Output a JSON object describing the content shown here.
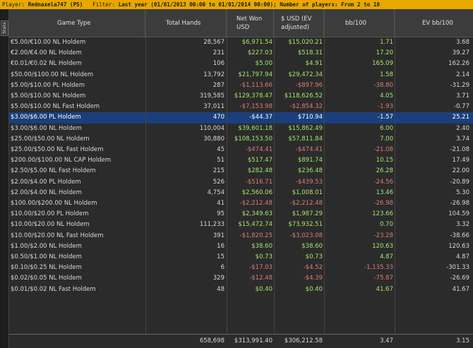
{
  "titlebar": {
    "player_label": "Player:",
    "player_value": "Rednaxela747 (PS)",
    "filter_label": "Filter:",
    "filter_value": "Last year (01/01/2013 00:00 to 01/01/2014 00:00); Number of players: From 2 to 10"
  },
  "sidetab": {
    "label": "Stats"
  },
  "columns": [
    "Game Type",
    "Total Hands",
    "Net Won USD",
    "$ USD (EV adjusted)",
    "bb/100",
    "EV bb/100"
  ],
  "rows": [
    {
      "game": "€5.00/€10.00 NL Holdem",
      "hands": "28,567",
      "net": "$6,971.54",
      "ev": "$15,020.21",
      "bb": "1.71",
      "evbb": "3.68"
    },
    {
      "game": "€2.00/€4.00 NL Holdem",
      "hands": "231",
      "net": "$227.03",
      "ev": "$518.31",
      "bb": "17.20",
      "evbb": "39.27"
    },
    {
      "game": "€0.01/€0.02 NL Holdem",
      "hands": "106",
      "net": "$5.00",
      "ev": "$4.91",
      "bb": "165.09",
      "evbb": "162.26"
    },
    {
      "game": "$50.00/$100.00 NL Holdem",
      "hands": "13,792",
      "net": "$21,797.94",
      "ev": "$29,472.34",
      "bb": "1.58",
      "evbb": "2.14"
    },
    {
      "game": "$5.00/$10.00 PL Holdem",
      "hands": "287",
      "net": "-$1,113.66",
      "ev": "-$897.96",
      "bb": "-38.80",
      "evbb": "-31.29"
    },
    {
      "game": "$5.00/$10.00 NL Holdem",
      "hands": "319,585",
      "net": "$129,378.47",
      "ev": "$118,626.52",
      "bb": "4.05",
      "evbb": "3.71"
    },
    {
      "game": "$5.00/$10.00 NL Fast Holdem",
      "hands": "37,011",
      "net": "-$7,153.98",
      "ev": "-$2,854.32",
      "bb": "-1.93",
      "evbb": "-0.77"
    },
    {
      "game": "$3.00/$6.00 PL Holdem",
      "hands": "470",
      "net": "-$44.37",
      "ev": "$710.94",
      "bb": "-1.57",
      "evbb": "25.21",
      "selected": true
    },
    {
      "game": "$3.00/$6.00 NL Holdem",
      "hands": "110,004",
      "net": "$39,601.18",
      "ev": "$15,862.49",
      "bb": "6.00",
      "evbb": "2.40"
    },
    {
      "game": "$25.00/$50.00 NL Holdem",
      "hands": "30,880",
      "net": "$108,153.50",
      "ev": "$57,811.84",
      "bb": "7.00",
      "evbb": "3.74"
    },
    {
      "game": "$25.00/$50.00 NL Fast Holdem",
      "hands": "45",
      "net": "-$474.41",
      "ev": "-$474.41",
      "bb": "-21.08",
      "evbb": "-21.08"
    },
    {
      "game": "$200.00/$100.00 NL CAP Holdem",
      "hands": "51",
      "net": "$517.47",
      "ev": "$891.74",
      "bb": "10.15",
      "evbb": "17.49"
    },
    {
      "game": "$2.50/$5.00 NL Fast Holdem",
      "hands": "215",
      "net": "$282.48",
      "ev": "$236.48",
      "bb": "26.28",
      "evbb": "22.00"
    },
    {
      "game": "$2.00/$4.00 PL Holdem",
      "hands": "526",
      "net": "-$516.71",
      "ev": "-$439.53",
      "bb": "-24.56",
      "evbb": "-20.89"
    },
    {
      "game": "$2.00/$4.00 NL Holdem",
      "hands": "4,754",
      "net": "$2,560.06",
      "ev": "$1,008.01",
      "bb": "13.46",
      "evbb": "5.30"
    },
    {
      "game": "$100.00/$200.00 NL Holdem",
      "hands": "41",
      "net": "-$2,212.48",
      "ev": "-$2,212.48",
      "bb": "-26.98",
      "evbb": "-26.98"
    },
    {
      "game": "$10.00/$20.00 PL Holdem",
      "hands": "95",
      "net": "$2,349.63",
      "ev": "$1,987.29",
      "bb": "123.66",
      "evbb": "104.59"
    },
    {
      "game": "$10.00/$20.00 NL Holdem",
      "hands": "111,233",
      "net": "$15,472.74",
      "ev": "$73,932.51",
      "bb": "0.70",
      "evbb": "3.32"
    },
    {
      "game": "$10.00/$20.00 NL Fast Holdem",
      "hands": "391",
      "net": "-$1,820.25",
      "ev": "-$3,023.08",
      "bb": "-23.28",
      "evbb": "-38.66"
    },
    {
      "game": "$1.00/$2.00 NL Holdem",
      "hands": "16",
      "net": "$38.60",
      "ev": "$38.60",
      "bb": "120.63",
      "evbb": "120.63"
    },
    {
      "game": "$0.50/$1.00 NL Holdem",
      "hands": "15",
      "net": "$0.73",
      "ev": "$0.73",
      "bb": "4.87",
      "evbb": "4.87"
    },
    {
      "game": "$0.10/$0.25 NL Holdem",
      "hands": "6",
      "net": "-$17.03",
      "ev": "-$4.52",
      "bb": "-1,135.33",
      "evbb": "-301.33"
    },
    {
      "game": "$0.02/$0.05 NL Holdem",
      "hands": "329",
      "net": "-$12.48",
      "ev": "-$4.39",
      "bb": "-75.87",
      "evbb": "-26.69"
    },
    {
      "game": "$0.01/$0.02 NL Fast Holdem",
      "hands": "48",
      "net": "$0.40",
      "ev": "$0.40",
      "bb": "41.67",
      "evbb": "41.67"
    }
  ],
  "totals": {
    "hands": "658,698",
    "net": "$313,991.40",
    "ev": "$306,212.58",
    "bb": "3.47",
    "evbb": "3.15"
  }
}
